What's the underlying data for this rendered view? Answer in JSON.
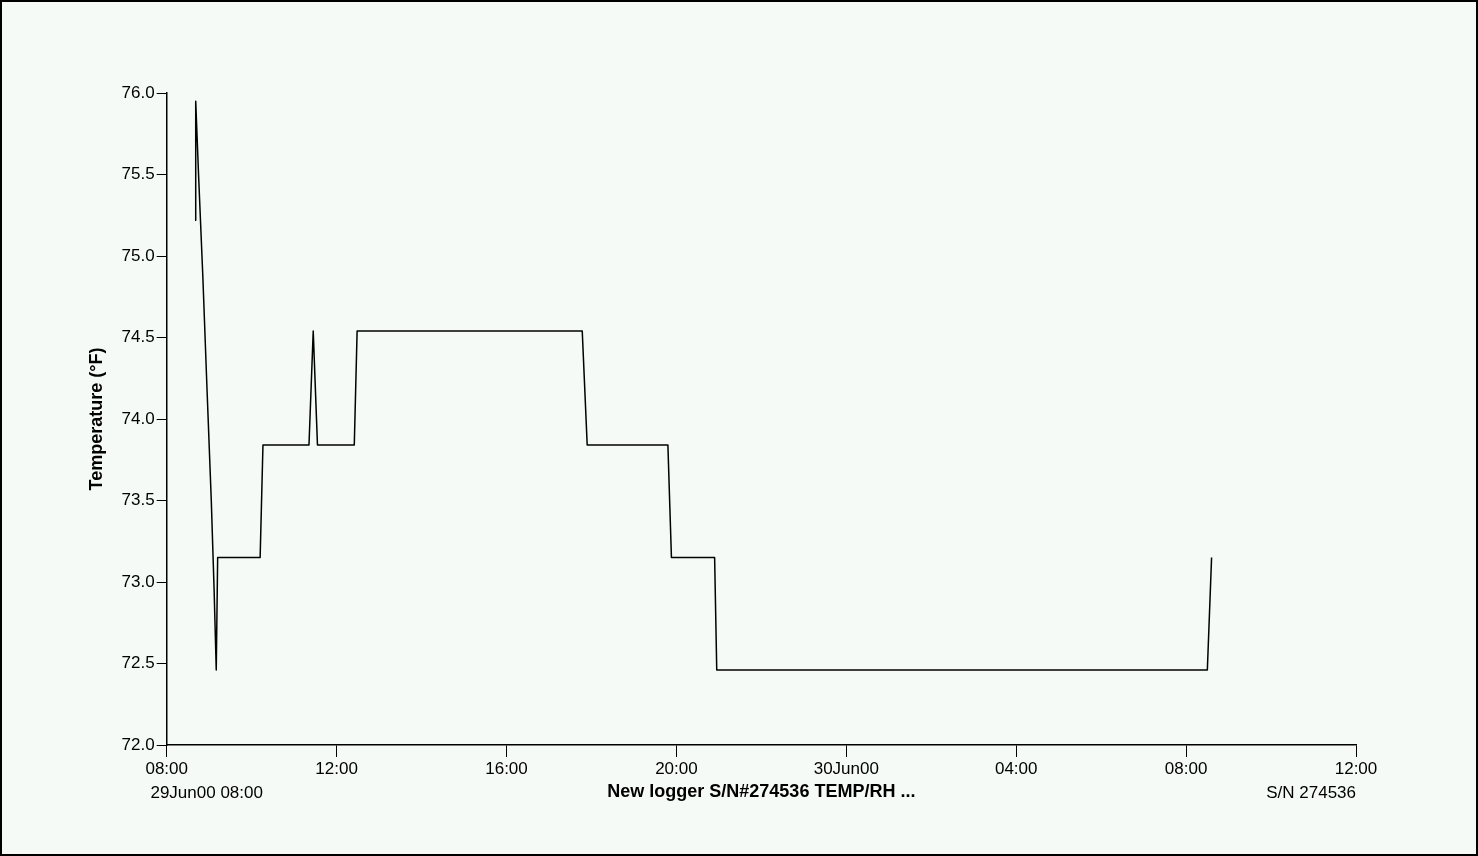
{
  "chart_data": {
    "type": "line",
    "ylabel": "Temperature (°F)",
    "xlabel": "New logger S/N#274536 TEMP/RH ...",
    "annotations": [
      "29Jun00 08:00",
      "S/N 274536"
    ],
    "x": [
      "2000-06-29T08:40",
      "2000-06-29T08:41",
      "2000-06-29T08:45",
      "2000-06-29T08:51",
      "2000-06-29T08:57",
      "2000-06-29T09:03",
      "2000-06-29T09:07",
      "2000-06-29T09:10",
      "2000-06-29T09:12",
      "2000-06-29T10:12",
      "2000-06-29T10:16",
      "2000-06-29T11:21",
      "2000-06-29T11:27",
      "2000-06-29T11:33",
      "2000-06-29T12:25",
      "2000-06-29T12:29",
      "2000-06-29T17:47",
      "2000-06-29T17:54",
      "2000-06-29T19:48",
      "2000-06-29T19:53",
      "2000-06-29T20:54",
      "2000-06-29T20:57",
      "2000-06-30T08:30",
      "2000-06-30T08:36"
    ],
    "series": [
      {
        "color": "#000000",
        "values": [
          75.22,
          75.95,
          75.5,
          74.88,
          74.18,
          73.5,
          72.95,
          72.46,
          73.15,
          73.15,
          73.84,
          73.84,
          74.54,
          73.84,
          73.84,
          74.54,
          74.54,
          73.84,
          73.84,
          73.15,
          73.15,
          72.46,
          72.46,
          73.15
        ]
      }
    ],
    "xlim": [
      "2000-06-29T08:00",
      "2000-06-30T12:00"
    ],
    "xticks": [
      {
        "value": "2000-06-29T08:00",
        "label": "08:00"
      },
      {
        "value": "2000-06-29T12:00",
        "label": "12:00"
      },
      {
        "value": "2000-06-29T16:00",
        "label": "16:00"
      },
      {
        "value": "2000-06-29T20:00",
        "label": "20:00"
      },
      {
        "value": "2000-06-30T00:00",
        "label": "30Jun00"
      },
      {
        "value": "2000-06-30T04:00",
        "label": "04:00"
      },
      {
        "value": "2000-06-30T08:00",
        "label": "08:00"
      },
      {
        "value": "2000-06-30T12:00",
        "label": "12:00"
      }
    ],
    "ylim": [
      72,
      76
    ],
    "yticks": [
      {
        "value": 72,
        "label": "72.0"
      },
      {
        "value": 72.5,
        "label": "72.5"
      },
      {
        "value": 73,
        "label": "73.0"
      },
      {
        "value": 73.5,
        "label": "73.5"
      },
      {
        "value": 74,
        "label": "74.0"
      },
      {
        "value": 74.5,
        "label": "74.5"
      },
      {
        "value": 75,
        "label": "75.0"
      },
      {
        "value": 75.5,
        "label": "75.5"
      },
      {
        "value": 76,
        "label": "76.0"
      }
    ],
    "grid": false,
    "legend": false,
    "marker": "none",
    "line_style": "solid"
  }
}
